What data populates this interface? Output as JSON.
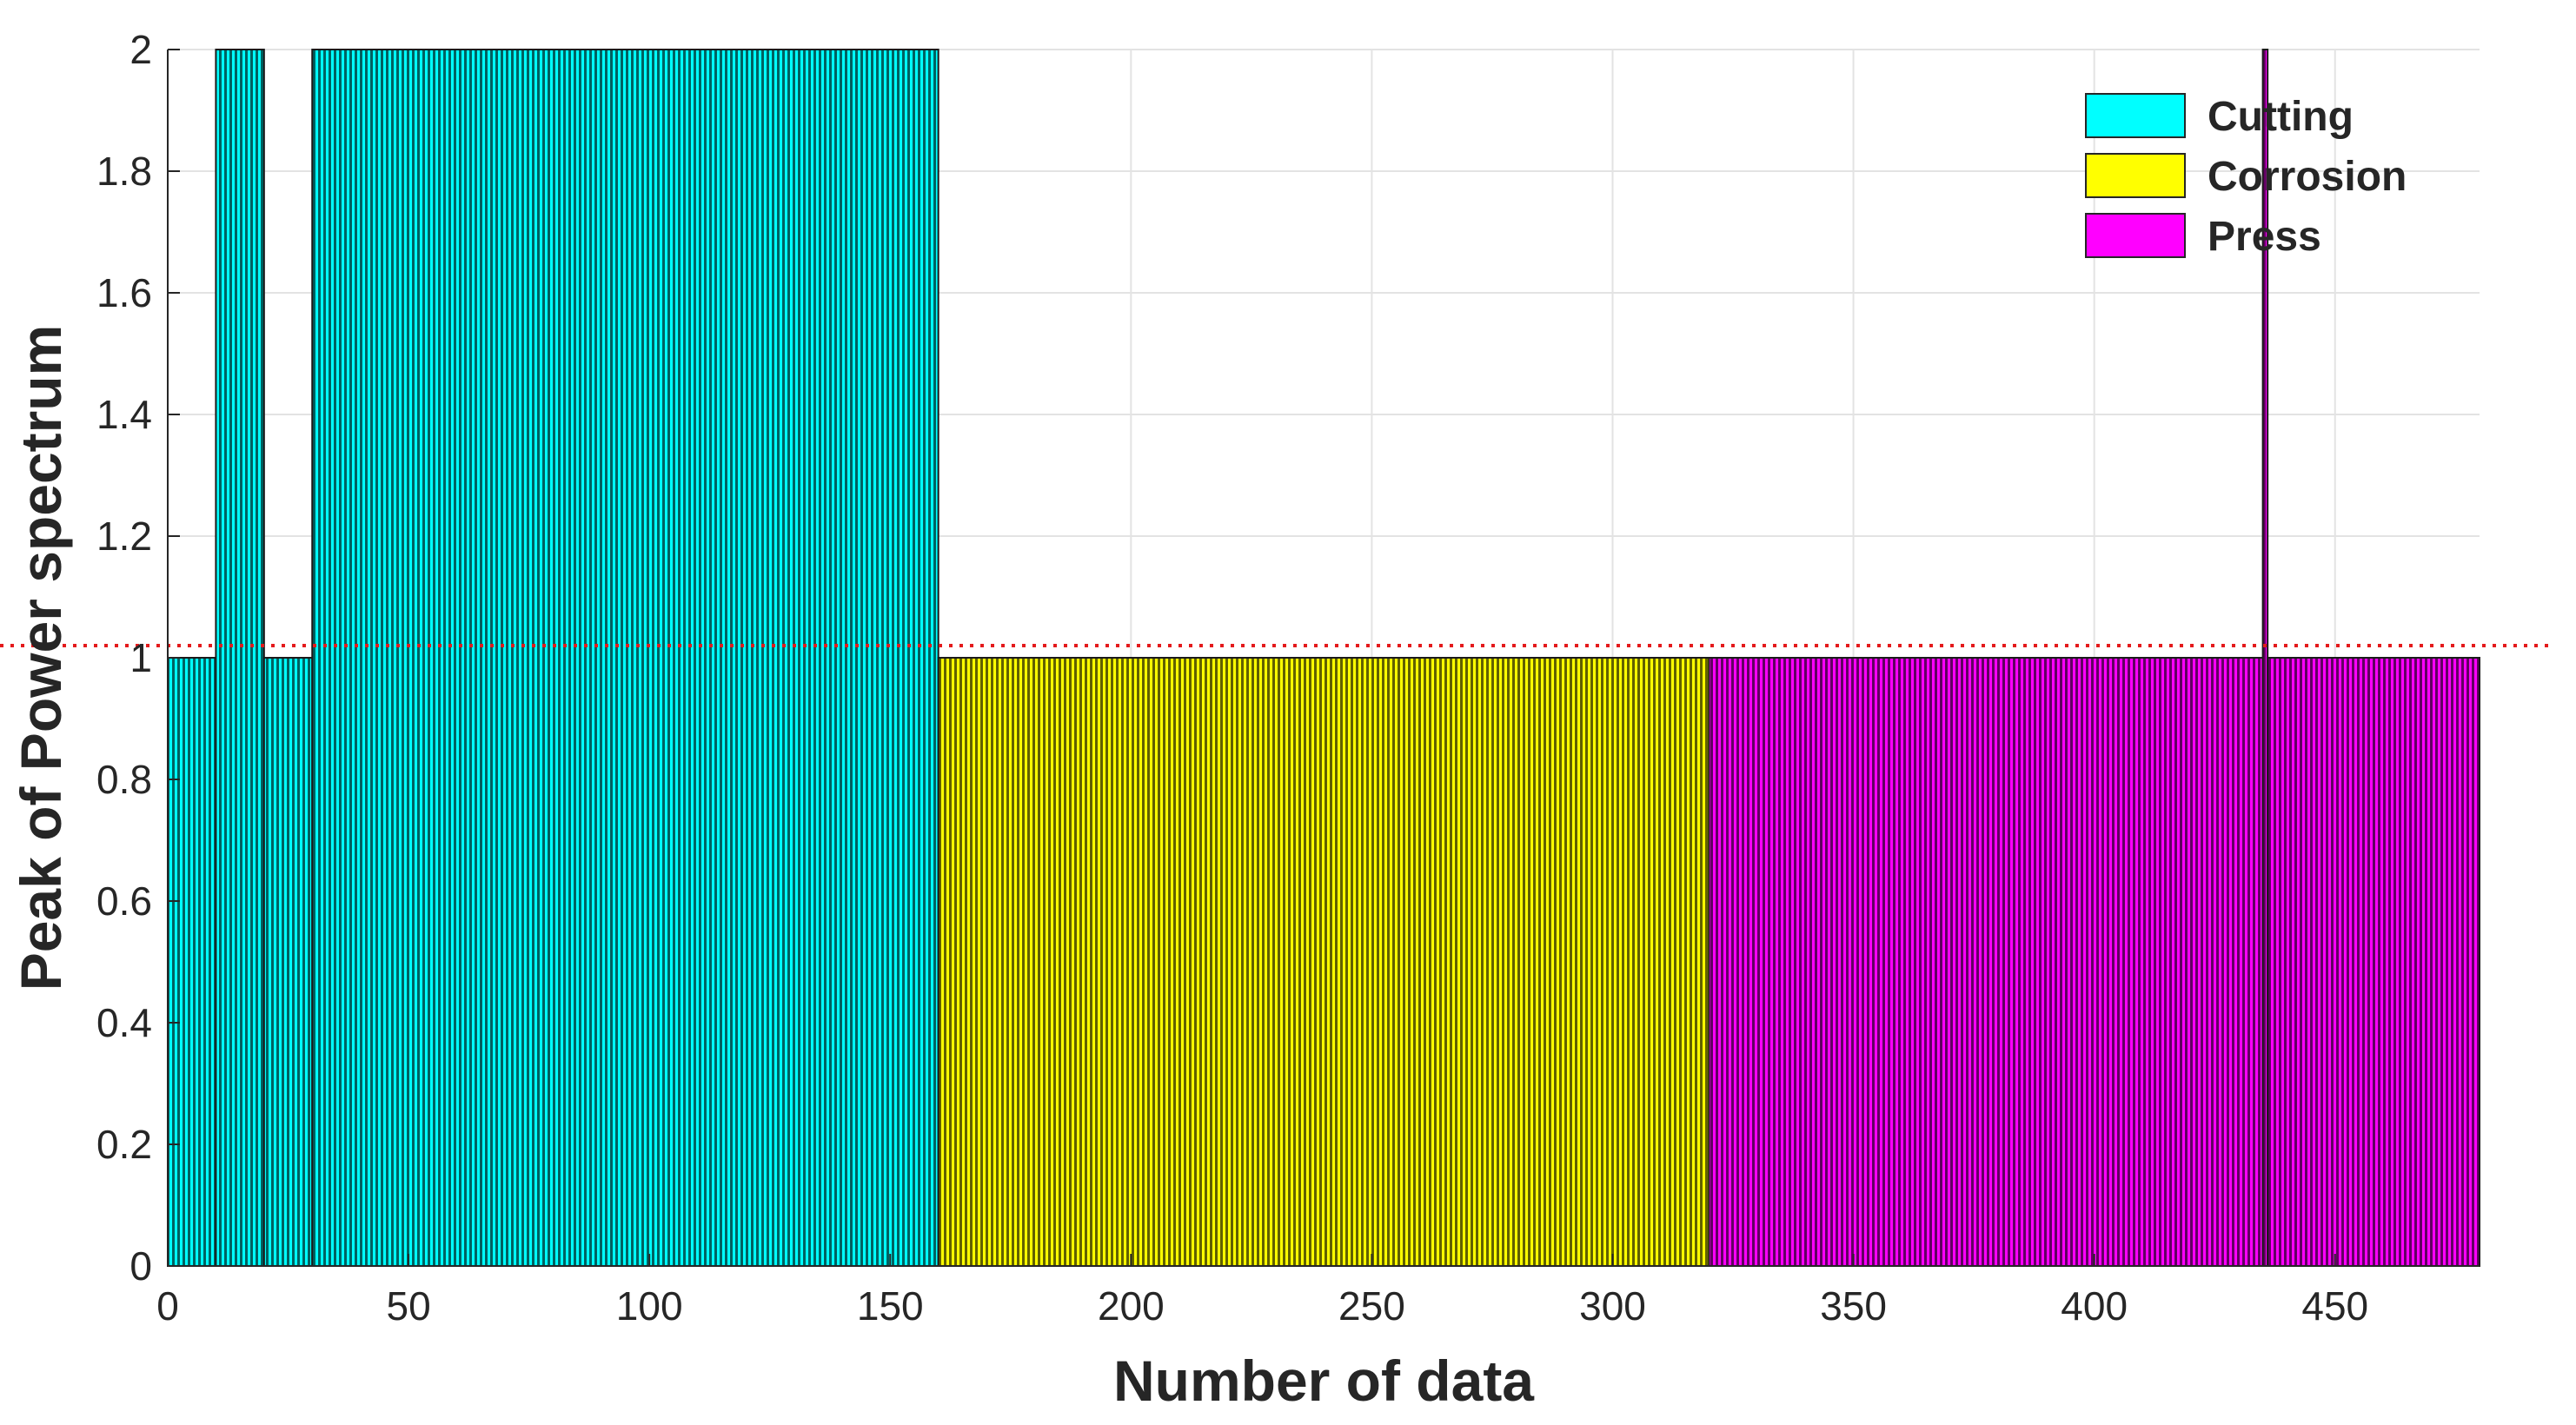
{
  "chart_data": {
    "type": "bar",
    "title": "",
    "xlabel": "Number of data",
    "ylabel": "Peak of Power spectrum",
    "xlim": [
      0,
      480
    ],
    "ylim": [
      0,
      2
    ],
    "xticks": [
      0,
      50,
      100,
      150,
      200,
      250,
      300,
      350,
      400,
      450
    ],
    "yticks": [
      0,
      0.2,
      0.4,
      0.6,
      0.8,
      1,
      1.2,
      1.4,
      1.6,
      1.8,
      2
    ],
    "ytick_labels": [
      "0",
      "0.2",
      "0.4",
      "0.6",
      "0.8",
      "1",
      "1.2",
      "1.4",
      "1.6",
      "1.8",
      "2"
    ],
    "grid": true,
    "legend_position": "top-right",
    "threshold_line": {
      "y": 1,
      "style": "dotted",
      "color": "#e41a1c"
    },
    "series": [
      {
        "name": "Cutting",
        "color": "#00ffff",
        "segments": [
          {
            "x_start": 0,
            "x_end": 10,
            "value": 1
          },
          {
            "x_start": 10,
            "x_end": 20,
            "value": 2
          },
          {
            "x_start": 20,
            "x_end": 30,
            "value": 1
          },
          {
            "x_start": 30,
            "x_end": 160,
            "value": 2
          }
        ]
      },
      {
        "name": "Corrosion",
        "color": "#ffff00",
        "segments": [
          {
            "x_start": 160,
            "x_end": 320,
            "value": 1
          }
        ]
      },
      {
        "name": "Press",
        "color": "#ff00ff",
        "segments": [
          {
            "x_start": 320,
            "x_end": 435,
            "value": 1
          },
          {
            "x_start": 435,
            "x_end": 436,
            "value": 2
          },
          {
            "x_start": 436,
            "x_end": 480,
            "value": 1
          }
        ]
      }
    ]
  }
}
